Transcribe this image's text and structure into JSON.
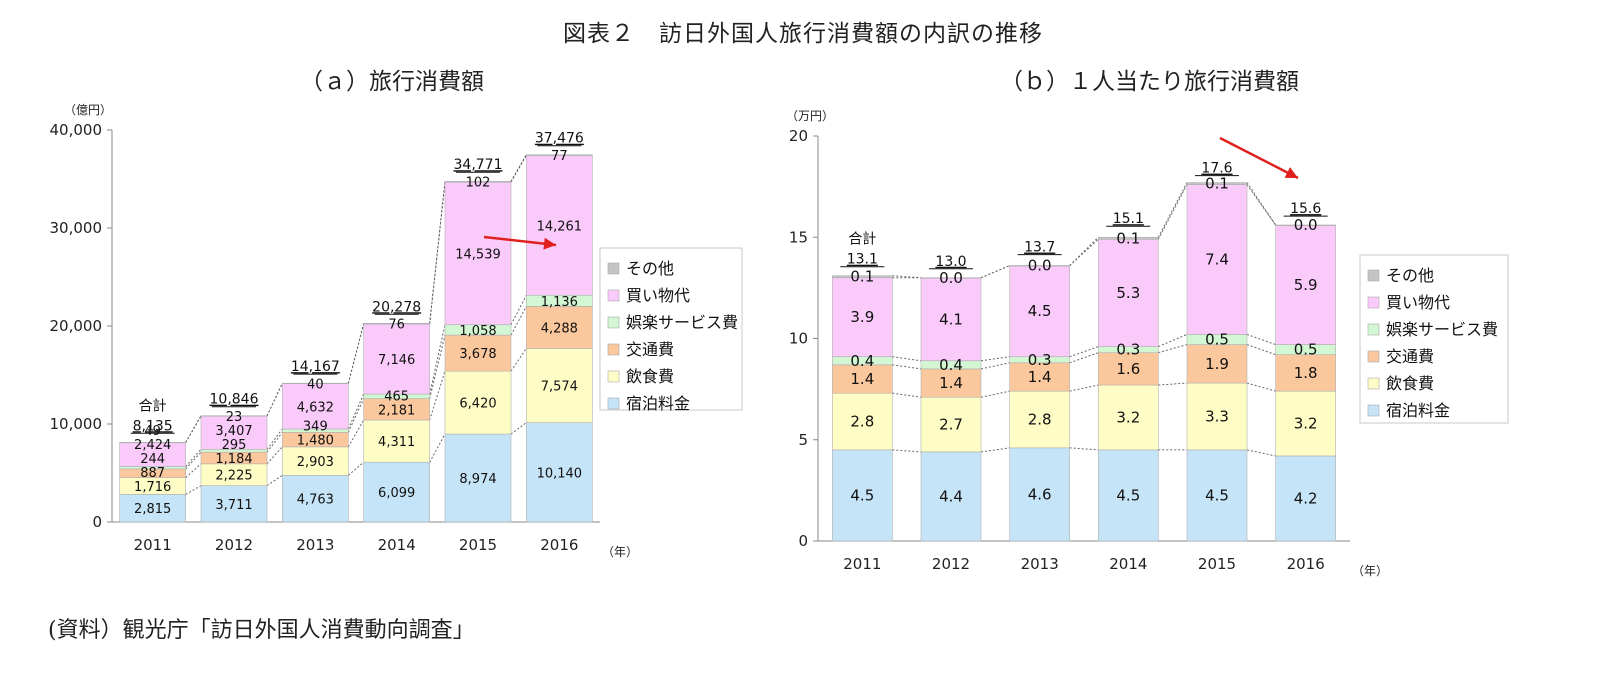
{
  "figure_title": "図表２　訪日外国人旅行消費額の内訳の推移",
  "source": "(資料）観光庁「訪日外国人消費動向調査」",
  "colors": {
    "宿泊料金": "#c5e4f7",
    "飲食費": "#fefdc6",
    "交通費": "#fbc79d",
    "娯楽サービス費": "#d3f7d3",
    "買い物代": "#facbfa",
    "その他": "#c4c4c4",
    "arrow": "#e0201e"
  },
  "chart_data": [
    {
      "type": "bar",
      "stacked": true,
      "title": "（ａ）旅行消費額",
      "unit_label": "（億円）",
      "x_unit_label": "（年）",
      "categories": [
        "2011",
        "2012",
        "2013",
        "2014",
        "2015",
        "2016"
      ],
      "series": [
        {
          "name": "宿泊料金",
          "values": [
            2815,
            3711,
            4763,
            6099,
            8974,
            10140
          ],
          "labels": [
            "2,815",
            "3,711",
            "4,763",
            "6,099",
            "8,974",
            "10,140"
          ]
        },
        {
          "name": "飲食費",
          "values": [
            1716,
            2225,
            2903,
            4311,
            6420,
            7574
          ],
          "labels": [
            "1,716",
            "2,225",
            "2,903",
            "4,311",
            "6,420",
            "7,574"
          ]
        },
        {
          "name": "交通費",
          "values": [
            887,
            1184,
            1480,
            2181,
            3678,
            4288
          ],
          "labels": [
            "887",
            "1,184",
            "1,480",
            "2,181",
            "3,678",
            "4,288"
          ]
        },
        {
          "name": "娯楽サービス費",
          "values": [
            244,
            295,
            349,
            465,
            1058,
            1136
          ],
          "labels": [
            "244",
            "295",
            "349",
            "465",
            "1,058",
            "1,136"
          ]
        },
        {
          "name": "買い物代",
          "values": [
            2424,
            3407,
            4632,
            7146,
            14539,
            14261
          ],
          "labels": [
            "2,424",
            "3,407",
            "4,632",
            "7,146",
            "14,539",
            "14,261"
          ]
        },
        {
          "name": "その他",
          "values": [
            49,
            23,
            40,
            76,
            102,
            77
          ],
          "labels": [
            "49",
            "23",
            "40",
            "76",
            "102",
            "77"
          ]
        }
      ],
      "totals": [
        8135,
        10846,
        14167,
        20278,
        34771,
        37476
      ],
      "total_labels": [
        "8,135",
        "10,846",
        "14,167",
        "20,278",
        "34,771",
        "37,476"
      ],
      "total_caption": "合計",
      "ylim": [
        0,
        40000
      ],
      "yticks": [
        0,
        10000,
        20000,
        30000,
        40000
      ],
      "ytick_labels": [
        "0",
        "10,000",
        "20,000",
        "30,000",
        "40,000"
      ],
      "legend_position": "right",
      "annotation": "red arrow in 2015–2016 shopping segment"
    },
    {
      "type": "bar",
      "stacked": true,
      "title": "（ｂ）１人当たり旅行消費額",
      "unit_label": "（万円）",
      "x_unit_label": "（年）",
      "categories": [
        "2011",
        "2012",
        "2013",
        "2014",
        "2015",
        "2016"
      ],
      "series": [
        {
          "name": "宿泊料金",
          "values": [
            4.5,
            4.4,
            4.6,
            4.5,
            4.5,
            4.2
          ],
          "labels": [
            "4.5",
            "4.4",
            "4.6",
            "4.5",
            "4.5",
            "4.2"
          ]
        },
        {
          "name": "飲食費",
          "values": [
            2.8,
            2.7,
            2.8,
            3.2,
            3.3,
            3.2
          ],
          "labels": [
            "2.8",
            "2.7",
            "2.8",
            "3.2",
            "3.3",
            "3.2"
          ]
        },
        {
          "name": "交通費",
          "values": [
            1.4,
            1.4,
            1.4,
            1.6,
            1.9,
            1.8
          ],
          "labels": [
            "1.4",
            "1.4",
            "1.4",
            "1.6",
            "1.9",
            "1.8"
          ]
        },
        {
          "name": "娯楽サービス費",
          "values": [
            0.4,
            0.4,
            0.3,
            0.3,
            0.5,
            0.5
          ],
          "labels": [
            "0.4",
            "0.4",
            "0.3",
            "0.3",
            "0.5",
            "0.5"
          ]
        },
        {
          "name": "買い物代",
          "values": [
            3.9,
            4.1,
            4.5,
            5.3,
            7.4,
            5.9
          ],
          "labels": [
            "3.9",
            "4.1",
            "4.5",
            "5.3",
            "7.4",
            "5.9"
          ]
        },
        {
          "name": "その他",
          "values": [
            0.1,
            0.0,
            0.0,
            0.1,
            0.1,
            0.0
          ],
          "labels": [
            "0.1",
            "0.0",
            "0.0",
            "0.1",
            "0.1",
            "0.0"
          ]
        }
      ],
      "totals": [
        13.1,
        13.0,
        13.7,
        15.1,
        17.6,
        15.6
      ],
      "total_labels": [
        "13.1",
        "13.0",
        "13.7",
        "15.1",
        "17.6",
        "15.6"
      ],
      "total_caption": "合計",
      "ylim": [
        0,
        20
      ],
      "yticks": [
        0,
        5,
        10,
        15,
        20
      ],
      "ytick_labels": [
        "0",
        "5",
        "10",
        "15",
        "20"
      ],
      "legend_position": "right",
      "annotation": "red arrow from 2015 total to 2016 total"
    }
  ]
}
